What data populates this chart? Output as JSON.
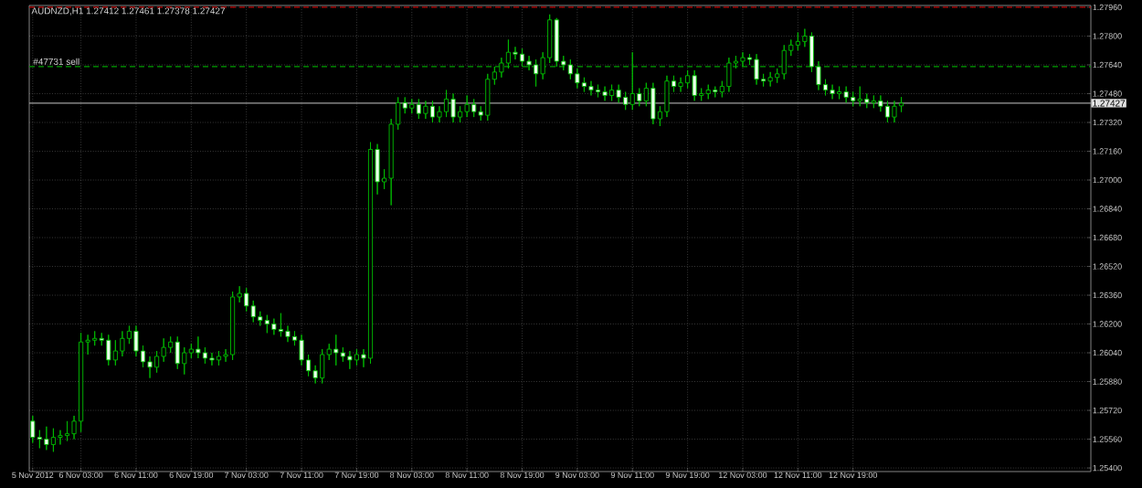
{
  "chart_data": {
    "type": "candlestick",
    "title": "AUDNZD,H1 1.27412 1.27461 1.27378 1.27427",
    "color": "#00c000",
    "grid": true,
    "categories": [
      "5 Nov 2012",
      null,
      null,
      null,
      null,
      null,
      null,
      "6 Nov 03:00",
      null,
      null,
      null,
      null,
      null,
      null,
      null,
      "6 Nov 11:00",
      null,
      null,
      null,
      null,
      null,
      null,
      null,
      "6 Nov 19:00",
      null,
      null,
      null,
      null,
      null,
      null,
      null,
      "7 Nov 03:00",
      null,
      null,
      null,
      null,
      null,
      null,
      null,
      "7 Nov 11:00",
      null,
      null,
      null,
      null,
      null,
      null,
      null,
      "7 Nov 19:00",
      null,
      null,
      null,
      null,
      null,
      null,
      null,
      "8 Nov 03:00",
      null,
      null,
      null,
      null,
      null,
      null,
      null,
      "8 Nov 11:00",
      null,
      null,
      null,
      null,
      null,
      null,
      null,
      "8 Nov 19:00",
      null,
      null,
      null,
      null,
      null,
      null,
      null,
      "9 Nov 03:00",
      null,
      null,
      null,
      null,
      null,
      null,
      null,
      "9 Nov 11:00",
      null,
      null,
      null,
      null,
      null,
      null,
      null,
      "9 Nov 19:00",
      null,
      null,
      null,
      null,
      null,
      null,
      null,
      "12 Nov 03:00",
      null,
      null,
      null,
      null,
      null,
      null,
      null,
      "12 Nov 11:00",
      null,
      null,
      null,
      null,
      null,
      null,
      null,
      "12 Nov 19:00",
      null,
      null,
      null,
      null,
      null,
      null,
      null,
      null,
      null,
      null,
      null,
      null,
      null,
      null,
      null,
      null,
      null,
      null,
      null,
      null,
      null,
      null,
      null,
      null,
      null,
      null,
      null,
      null,
      null,
      null,
      null,
      null,
      null,
      null
    ],
    "ohlc": [
      [
        1.2566,
        1.2569,
        1.2554,
        1.2557
      ],
      [
        1.2557,
        1.2561,
        1.2551,
        1.2556
      ],
      [
        1.2556,
        1.2563,
        1.255,
        1.2553
      ],
      [
        1.2553,
        1.2562,
        1.2549,
        1.2557
      ],
      [
        1.2557,
        1.2561,
        1.2553,
        1.2558
      ],
      [
        1.2558,
        1.2566,
        1.2555,
        1.2559
      ],
      [
        1.2559,
        1.2569,
        1.2556,
        1.2566
      ],
      [
        1.2566,
        1.2615,
        1.256,
        1.261
      ],
      [
        1.261,
        1.2614,
        1.2603,
        1.2611
      ],
      [
        1.2611,
        1.2616,
        1.2608,
        1.2612
      ],
      [
        1.2612,
        1.2615,
        1.2608,
        1.2611
      ],
      [
        1.2611,
        1.2614,
        1.2597,
        1.26
      ],
      [
        1.26,
        1.2611,
        1.2597,
        1.2605
      ],
      [
        1.2605,
        1.2616,
        1.2602,
        1.2612
      ],
      [
        1.2612,
        1.2619,
        1.2609,
        1.2616
      ],
      [
        1.2616,
        1.2619,
        1.2602,
        1.2605
      ],
      [
        1.2605,
        1.2608,
        1.2596,
        1.2599
      ],
      [
        1.2599,
        1.2602,
        1.259,
        1.2596
      ],
      [
        1.2596,
        1.2605,
        1.2593,
        1.2602
      ],
      [
        1.2602,
        1.2612,
        1.2599,
        1.2607
      ],
      [
        1.2607,
        1.2613,
        1.2604,
        1.261
      ],
      [
        1.261,
        1.2613,
        1.2595,
        1.2598
      ],
      [
        1.2598,
        1.2607,
        1.2592,
        1.2604
      ],
      [
        1.2604,
        1.2609,
        1.2601,
        1.2606
      ],
      [
        1.2606,
        1.2613,
        1.2601,
        1.2604
      ],
      [
        1.2604,
        1.2607,
        1.2598,
        1.2601
      ],
      [
        1.2601,
        1.2604,
        1.2597,
        1.26
      ],
      [
        1.26,
        1.2605,
        1.2597,
        1.2602
      ],
      [
        1.2602,
        1.2606,
        1.2599,
        1.2603
      ],
      [
        1.2603,
        1.2638,
        1.26,
        1.2635
      ],
      [
        1.2635,
        1.2641,
        1.2632,
        1.2637
      ],
      [
        1.2637,
        1.264,
        1.2627,
        1.263
      ],
      [
        1.263,
        1.2633,
        1.2621,
        1.2624
      ],
      [
        1.2624,
        1.2627,
        1.2619,
        1.2622
      ],
      [
        1.2622,
        1.2625,
        1.2615,
        1.262
      ],
      [
        1.262,
        1.2623,
        1.2614,
        1.2617
      ],
      [
        1.2617,
        1.2626,
        1.2613,
        1.2616
      ],
      [
        1.2616,
        1.2619,
        1.261,
        1.2613
      ],
      [
        1.2613,
        1.2616,
        1.2608,
        1.2611
      ],
      [
        1.2611,
        1.2614,
        1.2597,
        1.26
      ],
      [
        1.26,
        1.2603,
        1.2591,
        1.2594
      ],
      [
        1.2594,
        1.2597,
        1.2587,
        1.259
      ],
      [
        1.259,
        1.2606,
        1.2587,
        1.2603
      ],
      [
        1.2603,
        1.2609,
        1.26,
        1.2606
      ],
      [
        1.2606,
        1.2614,
        1.2597,
        1.2604
      ],
      [
        1.2604,
        1.2607,
        1.2599,
        1.2602
      ],
      [
        1.2602,
        1.2605,
        1.2595,
        1.26
      ],
      [
        1.26,
        1.2606,
        1.2597,
        1.2603
      ],
      [
        1.2603,
        1.2606,
        1.2596,
        1.2601
      ],
      [
        1.2601,
        1.2721,
        1.2598,
        1.2717
      ],
      [
        1.2717,
        1.272,
        1.2692,
        1.2699
      ],
      [
        1.2699,
        1.2706,
        1.2695,
        1.2701
      ],
      [
        1.2701,
        1.2734,
        1.2686,
        1.2731
      ],
      [
        1.2731,
        1.2746,
        1.2728,
        1.2743
      ],
      [
        1.2743,
        1.2746,
        1.2737,
        1.274
      ],
      [
        1.274,
        1.2745,
        1.2737,
        1.2742
      ],
      [
        1.2742,
        1.2745,
        1.2734,
        1.2737
      ],
      [
        1.2737,
        1.2744,
        1.2734,
        1.2741
      ],
      [
        1.2741,
        1.2744,
        1.2732,
        1.2735
      ],
      [
        1.2735,
        1.2741,
        1.2732,
        1.2738
      ],
      [
        1.2738,
        1.275,
        1.2735,
        1.2745
      ],
      [
        1.2745,
        1.2748,
        1.2732,
        1.2735
      ],
      [
        1.2735,
        1.2741,
        1.2732,
        1.2738
      ],
      [
        1.2738,
        1.2747,
        1.2735,
        1.2742
      ],
      [
        1.2742,
        1.2745,
        1.2735,
        1.2738
      ],
      [
        1.2738,
        1.2741,
        1.2733,
        1.2736
      ],
      [
        1.2736,
        1.2759,
        1.2733,
        1.2756
      ],
      [
        1.2756,
        1.2763,
        1.2753,
        1.276
      ],
      [
        1.276,
        1.2768,
        1.2757,
        1.2765
      ],
      [
        1.2765,
        1.2778,
        1.2762,
        1.2771
      ],
      [
        1.2771,
        1.2774,
        1.2767,
        1.277
      ],
      [
        1.277,
        1.2773,
        1.2763,
        1.2766
      ],
      [
        1.2766,
        1.2769,
        1.2761,
        1.2764
      ],
      [
        1.2764,
        1.2767,
        1.2752,
        1.2759
      ],
      [
        1.2759,
        1.2771,
        1.2756,
        1.2768
      ],
      [
        1.2768,
        1.2792,
        1.2765,
        1.2789
      ],
      [
        1.2789,
        1.279,
        1.2763,
        1.2766
      ],
      [
        1.2766,
        1.2769,
        1.2761,
        1.2764
      ],
      [
        1.2764,
        1.2767,
        1.2756,
        1.2759
      ],
      [
        1.2759,
        1.2762,
        1.2751,
        1.2754
      ],
      [
        1.2754,
        1.2757,
        1.2749,
        1.2752
      ],
      [
        1.2752,
        1.2755,
        1.2747,
        1.275
      ],
      [
        1.275,
        1.2753,
        1.2746,
        1.2749
      ],
      [
        1.2749,
        1.2752,
        1.2744,
        1.2747
      ],
      [
        1.2747,
        1.2753,
        1.2744,
        1.275
      ],
      [
        1.275,
        1.2753,
        1.2743,
        1.2746
      ],
      [
        1.2746,
        1.2749,
        1.2739,
        1.2742
      ],
      [
        1.2742,
        1.2771,
        1.2739,
        1.2748
      ],
      [
        1.2748,
        1.2751,
        1.2741,
        1.2744
      ],
      [
        1.2744,
        1.2754,
        1.2741,
        1.2751
      ],
      [
        1.2751,
        1.2754,
        1.2731,
        1.2734
      ],
      [
        1.2734,
        1.2741,
        1.273,
        1.2738
      ],
      [
        1.2738,
        1.2758,
        1.2735,
        1.2755
      ],
      [
        1.2755,
        1.2758,
        1.2749,
        1.2752
      ],
      [
        1.2752,
        1.2757,
        1.2749,
        1.2754
      ],
      [
        1.2754,
        1.2761,
        1.2751,
        1.2758
      ],
      [
        1.2758,
        1.2761,
        1.2744,
        1.2747
      ],
      [
        1.2747,
        1.2751,
        1.2744,
        1.2748
      ],
      [
        1.2748,
        1.2753,
        1.2745,
        1.275
      ],
      [
        1.275,
        1.2752,
        1.2746,
        1.2749
      ],
      [
        1.2749,
        1.2755,
        1.2746,
        1.2752
      ],
      [
        1.2752,
        1.2768,
        1.2749,
        1.2765
      ],
      [
        1.2765,
        1.2769,
        1.2762,
        1.2766
      ],
      [
        1.2766,
        1.2771,
        1.2763,
        1.2768
      ],
      [
        1.2768,
        1.277,
        1.2764,
        1.2767
      ],
      [
        1.2767,
        1.277,
        1.2753,
        1.2756
      ],
      [
        1.2756,
        1.2759,
        1.2752,
        1.2755
      ],
      [
        1.2755,
        1.276,
        1.2752,
        1.2757
      ],
      [
        1.2757,
        1.2762,
        1.2754,
        1.2759
      ],
      [
        1.2759,
        1.2775,
        1.2756,
        1.2772
      ],
      [
        1.2772,
        1.2778,
        1.2769,
        1.2775
      ],
      [
        1.2775,
        1.2782,
        1.2772,
        1.2777
      ],
      [
        1.2777,
        1.2784,
        1.2774,
        1.278
      ],
      [
        1.278,
        1.2782,
        1.276,
        1.2763
      ],
      [
        1.2763,
        1.2766,
        1.275,
        1.2753
      ],
      [
        1.2753,
        1.2756,
        1.2747,
        1.275
      ],
      [
        1.275,
        1.2753,
        1.2745,
        1.2748
      ],
      [
        1.2748,
        1.2752,
        1.2745,
        1.2749
      ],
      [
        1.2749,
        1.2752,
        1.2743,
        1.2746
      ],
      [
        1.2746,
        1.2749,
        1.2741,
        1.2744
      ],
      [
        1.2744,
        1.2752,
        1.2741,
        1.2745
      ],
      [
        1.2745,
        1.2748,
        1.274,
        1.2743
      ],
      [
        1.2743,
        1.2747,
        1.274,
        1.2744
      ],
      [
        1.2744,
        1.2747,
        1.2738,
        1.2741
      ],
      [
        1.2741,
        1.2744,
        1.2732,
        1.2735
      ],
      [
        1.2735,
        1.2744,
        1.2732,
        1.2741
      ],
      [
        1.27412,
        1.27461,
        1.27378,
        1.27427
      ],
      null,
      null,
      null,
      null,
      null,
      null,
      null,
      null,
      null,
      null,
      null,
      null,
      null,
      null,
      null,
      null,
      null,
      null,
      null,
      null,
      null,
      null,
      null,
      null,
      null,
      null,
      null
    ],
    "ylim": [
      1.2538,
      1.2797
    ],
    "yticks": [
      {
        "value": 1.2796,
        "label": "1.27960"
      },
      {
        "value": 1.278,
        "label": "1.27800"
      },
      {
        "value": 1.2764,
        "label": "1.27640"
      },
      {
        "value": 1.2748,
        "label": "1.27480"
      },
      {
        "value": 1.2732,
        "label": "1.27320"
      },
      {
        "value": 1.2716,
        "label": "1.27160"
      },
      {
        "value": 1.27,
        "label": "1.27000"
      },
      {
        "value": 1.2684,
        "label": "1.26840"
      },
      {
        "value": 1.2668,
        "label": "1.26680"
      },
      {
        "value": 1.2652,
        "label": "1.26520"
      },
      {
        "value": 1.2636,
        "label": "1.26360"
      },
      {
        "value": 1.262,
        "label": "1.26200"
      },
      {
        "value": 1.2604,
        "label": "1.26040"
      },
      {
        "value": 1.2588,
        "label": "1.25880"
      },
      {
        "value": 1.2572,
        "label": "1.25720"
      },
      {
        "value": 1.2556,
        "label": "1.25560"
      },
      {
        "value": 1.254,
        "label": "1.25400"
      }
    ],
    "ref_lines": [
      {
        "axis": "y",
        "value": 1.2796,
        "color": "#c00000",
        "line_style": "dashed"
      },
      {
        "axis": "y",
        "value": 1.2763,
        "label": "#47731 sell",
        "color": "#00a000",
        "line_style": "dashed"
      },
      {
        "axis": "y",
        "value": 1.27427,
        "label": "1.27427",
        "color": "#a0a0a0",
        "line_style": "solid"
      }
    ]
  }
}
